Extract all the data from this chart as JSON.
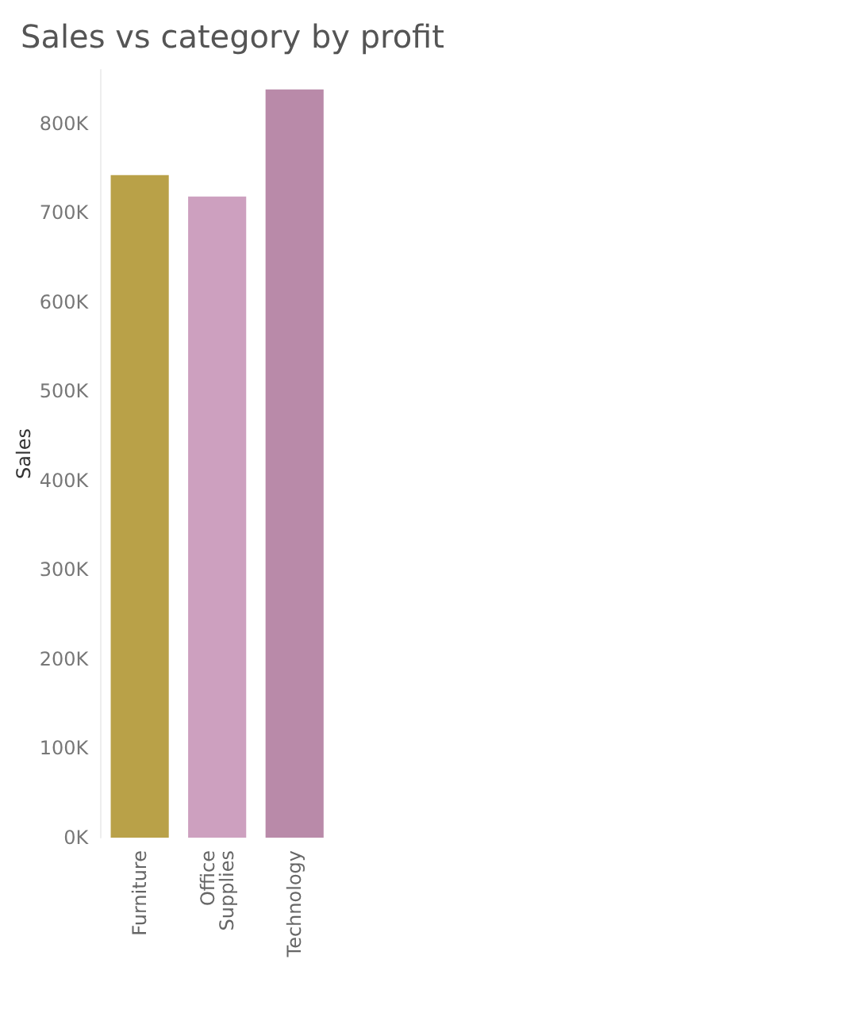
{
  "chart_data": {
    "type": "bar",
    "title": "Sales vs category by profit",
    "ylabel": "Sales",
    "categories": [
      "Furniture",
      "Office Supplies",
      "Technology"
    ],
    "values": [
      742000,
      718000,
      838000
    ],
    "colors": [
      "#b9a148",
      "#cda0bf",
      "#b98aa9"
    ],
    "ylim": [
      0,
      860000
    ],
    "yticks": [
      {
        "value": 0,
        "label": "0K"
      },
      {
        "value": 100000,
        "label": "100K"
      },
      {
        "value": 200000,
        "label": "200K"
      },
      {
        "value": 300000,
        "label": "300K"
      },
      {
        "value": 400000,
        "label": "400K"
      },
      {
        "value": 500000,
        "label": "500K"
      },
      {
        "value": 600000,
        "label": "600K"
      },
      {
        "value": 700000,
        "label": "700K"
      },
      {
        "value": 800000,
        "label": "800K"
      }
    ]
  }
}
